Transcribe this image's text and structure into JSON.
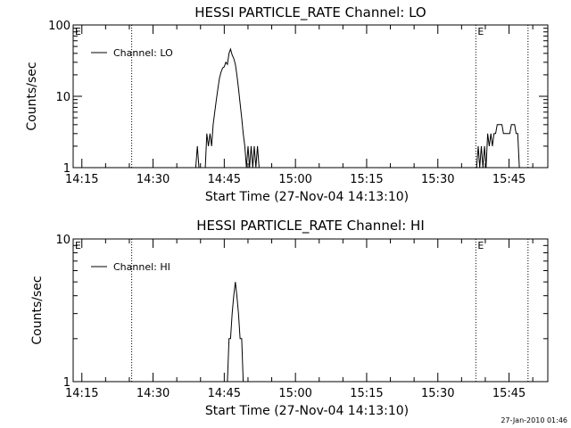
{
  "footer": {
    "timestamp": "27-Jan-2010 01:46"
  },
  "chart_data": [
    {
      "type": "line",
      "title": "HESSI PARTICLE_RATE Channel: LO",
      "xlabel": "Start Time (27-Nov-04 14:13:10)",
      "ylabel": "Counts/sec",
      "yscale": "log",
      "ylim": [
        1,
        100
      ],
      "xlim": [
        "14:13:10",
        "15:53:10"
      ],
      "xticks": [
        "14:15",
        "14:30",
        "14:45",
        "15:00",
        "15:15",
        "15:30",
        "15:45"
      ],
      "yticks": [
        "1",
        "10",
        "100"
      ],
      "legend": {
        "location": "top-left",
        "entries": [
          "Channel: LO"
        ]
      },
      "markers": [
        {
          "label": "E",
          "time": "14:13:10",
          "style": "dotted"
        },
        {
          "label": "",
          "time": "14:25:30",
          "style": "dotted"
        },
        {
          "label": "E",
          "time": "15:38:00",
          "style": "dotted"
        },
        {
          "label": "",
          "time": "15:49:00",
          "style": "dotted"
        }
      ],
      "series": [
        {
          "name": "Channel: LO",
          "x": [
            "14:39:00",
            "14:39:20",
            "14:39:40",
            "14:41:00",
            "14:41:20",
            "14:41:40",
            "14:42:00",
            "14:42:20",
            "14:42:40",
            "14:43:00",
            "14:43:20",
            "14:43:40",
            "14:44:00",
            "14:44:20",
            "14:44:40",
            "14:45:00",
            "14:45:20",
            "14:45:40",
            "14:46:00",
            "14:46:20",
            "14:46:40",
            "14:47:00",
            "14:47:20",
            "14:47:40",
            "14:48:00",
            "14:48:20",
            "14:48:40",
            "14:49:00",
            "14:49:20",
            "14:49:40",
            "14:50:00",
            "14:50:20",
            "14:50:40",
            "14:51:00",
            "14:51:20",
            "14:51:40",
            "14:52:00",
            "14:52:20",
            "14:52:40",
            "15:38:10",
            "15:38:30",
            "15:38:50",
            "15:39:10",
            "15:39:30",
            "15:39:50",
            "15:40:10",
            "15:40:30",
            "15:40:50",
            "15:41:10",
            "15:41:30",
            "15:41:50",
            "15:42:10",
            "15:42:30",
            "15:42:50",
            "15:43:10",
            "15:43:30",
            "15:43:50",
            "15:44:10",
            "15:44:30",
            "15:44:50",
            "15:45:10",
            "15:45:30",
            "15:45:50",
            "15:46:10",
            "15:46:30",
            "15:46:50",
            "15:47:10",
            "15:47:30"
          ],
          "y": [
            1,
            2,
            1,
            1,
            3,
            2,
            3,
            2,
            4,
            6,
            9,
            13,
            18,
            22,
            25,
            26,
            30,
            28,
            40,
            46,
            38,
            34,
            28,
            20,
            13,
            8,
            5,
            3,
            2,
            1,
            2,
            1,
            2,
            1,
            2,
            1,
            2,
            1,
            1,
            1,
            2,
            1,
            2,
            1,
            2,
            1,
            3,
            2,
            3,
            2,
            3,
            3,
            4,
            4,
            4,
            4,
            3,
            3,
            3,
            3,
            3,
            4,
            4,
            4,
            3,
            3,
            1,
            1
          ]
        }
      ]
    },
    {
      "type": "line",
      "title": "HESSI PARTICLE_RATE Channel: HI",
      "xlabel": "Start Time (27-Nov-04 14:13:10)",
      "ylabel": "Counts/sec",
      "yscale": "log",
      "ylim": [
        1,
        10
      ],
      "xlim": [
        "14:13:10",
        "15:53:10"
      ],
      "xticks": [
        "14:15",
        "14:30",
        "14:45",
        "15:00",
        "15:15",
        "15:30",
        "15:45"
      ],
      "yticks": [
        "1",
        "10"
      ],
      "legend": {
        "location": "top-left",
        "entries": [
          "Channel: HI"
        ]
      },
      "markers": [
        {
          "label": "E",
          "time": "14:13:10",
          "style": "dotted"
        },
        {
          "label": "",
          "time": "14:25:30",
          "style": "dotted"
        },
        {
          "label": "E",
          "time": "15:38:00",
          "style": "dotted"
        },
        {
          "label": "",
          "time": "15:49:00",
          "style": "dotted"
        }
      ],
      "series": [
        {
          "name": "Channel: HI",
          "x": [
            "14:45:20",
            "14:45:40",
            "14:46:00",
            "14:46:20",
            "14:46:40",
            "14:47:00",
            "14:47:20",
            "14:47:40",
            "14:48:00",
            "14:48:20",
            "14:48:40",
            "14:49:00"
          ],
          "y": [
            1,
            1,
            2,
            2,
            3,
            4,
            5,
            4,
            3,
            2,
            2,
            1
          ]
        }
      ]
    }
  ]
}
